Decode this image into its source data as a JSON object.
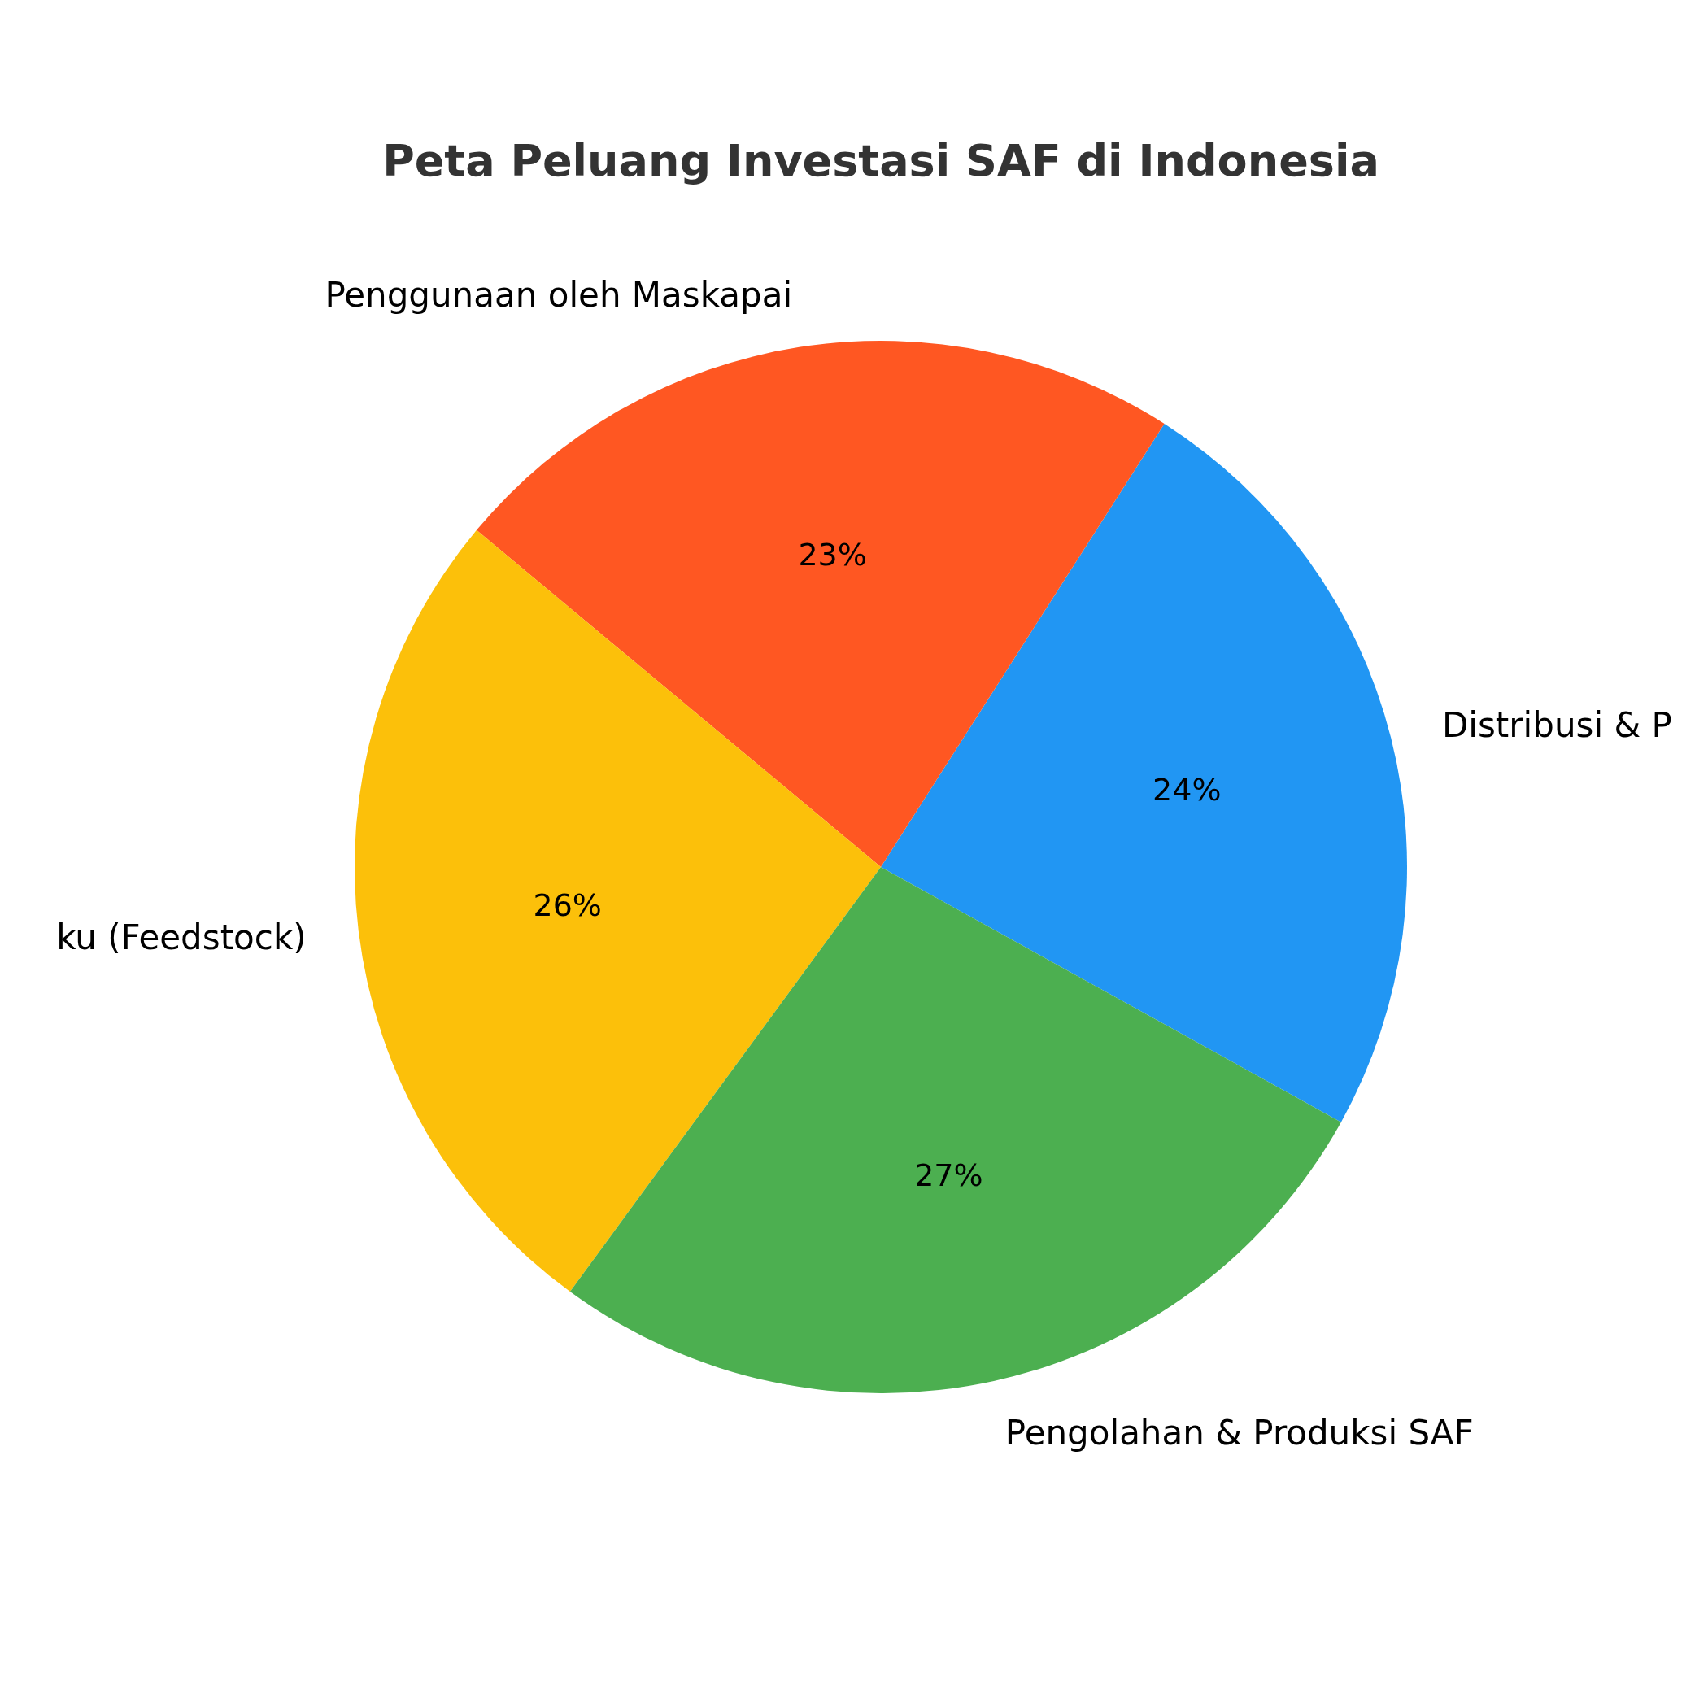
{
  "chart_data": {
    "type": "pie",
    "title": "Peta Peluang Investasi SAF di Indonesia",
    "categories": [
      "Distribusi & P",
      "Penggunaan oleh Maskapai",
      "ku (Feedstock)",
      "Pengolahan & Produksi SAF"
    ],
    "values": [
      24,
      23,
      26,
      27
    ],
    "colors": [
      "#2196f3",
      "#ff5722",
      "#fcc00a",
      "#4caf50"
    ],
    "value_labels": [
      "24%",
      "23%",
      "26%",
      "27%"
    ]
  }
}
